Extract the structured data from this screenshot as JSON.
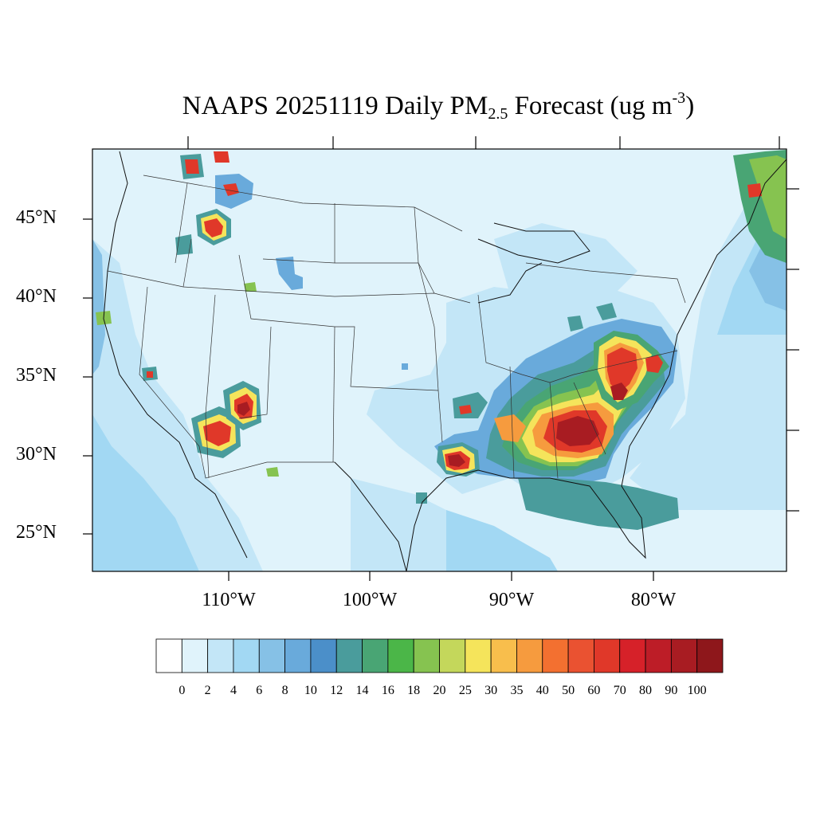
{
  "title": {
    "prefix": "NAAPS 20251119 Daily PM",
    "sub": "2.5",
    "middle": " Forecast (ug m",
    "sup": "-3",
    "suffix": ")"
  },
  "lat_labels": [
    "45°N",
    "40°N",
    "35°N",
    "30°N",
    "25°N"
  ],
  "lon_labels": [
    "110°W",
    "100°W",
    "90°W",
    "80°W"
  ],
  "colorbar": {
    "labels": [
      "0",
      "2",
      "4",
      "6",
      "8",
      "10",
      "12",
      "14",
      "16",
      "18",
      "20",
      "25",
      "30",
      "35",
      "40",
      "50",
      "60",
      "70",
      "80",
      "90",
      "100"
    ],
    "colors": [
      "#ffffff",
      "#e0f3fb",
      "#c3e6f7",
      "#a2d8f3",
      "#86c1e6",
      "#69aadb",
      "#4b8fc9",
      "#4a9c9c",
      "#49a574",
      "#4bb648",
      "#86c350",
      "#c4d75b",
      "#f5e45b",
      "#f8be4c",
      "#f69b3e",
      "#f37030",
      "#ea5231",
      "#e03829",
      "#d62129",
      "#bd1d27",
      "#a81c22",
      "#8e171b"
    ]
  },
  "map_colors": {
    "background": "#e0f3fb",
    "light": "#c3e6f7",
    "mid": "#a2d8f3",
    "teal": "#4a9c9c",
    "green": "#4bb648"
  }
}
